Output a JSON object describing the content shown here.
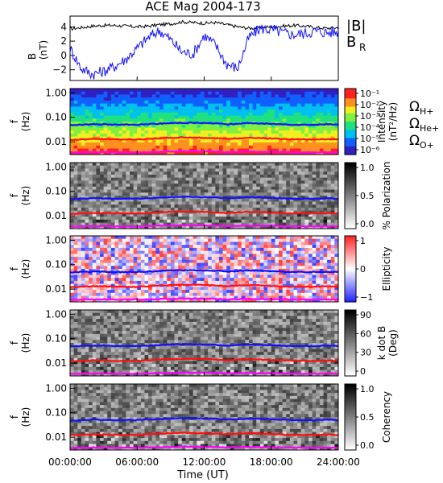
{
  "chart_data": {
    "type": "spectrogram-stack",
    "title": "ACE Mag 2004-173",
    "xlabel": "Time (UT)",
    "x_ticks": [
      "00:00:00",
      "06:00:00",
      "12:00:00",
      "18:00:00",
      "24:00:00"
    ],
    "x_range_hours": [
      0,
      24
    ],
    "freq_ticks": [
      "1.00",
      "0.10",
      "0.01"
    ],
    "freq_range_hz": [
      0.003,
      1.5
    ],
    "freq_scale": "log",
    "ylabel_freq": [
      "f",
      "(Hz)"
    ],
    "ion_lines": [
      {
        "label": "Ω",
        "sub": "H+",
        "color": "#1010ff",
        "x_hours": [
          0,
          1,
          2,
          3,
          4,
          5,
          6,
          7,
          8,
          9,
          10,
          11,
          12,
          13,
          14,
          15,
          16,
          17,
          18,
          19,
          20,
          21,
          22,
          23,
          24
        ],
        "freq_hz": [
          0.048,
          0.05,
          0.052,
          0.052,
          0.05,
          0.05,
          0.05,
          0.052,
          0.055,
          0.058,
          0.06,
          0.06,
          0.058,
          0.057,
          0.052,
          0.055,
          0.058,
          0.056,
          0.054,
          0.052,
          0.05,
          0.05,
          0.05,
          0.052,
          0.05
        ]
      },
      {
        "label": "Ω",
        "sub": "He+",
        "color": "#ff1010",
        "x_hours": [
          0,
          1,
          2,
          3,
          4,
          5,
          6,
          7,
          8,
          9,
          10,
          11,
          12,
          13,
          14,
          15,
          16,
          17,
          18,
          19,
          20,
          21,
          22,
          23,
          24
        ],
        "freq_hz": [
          0.012,
          0.0125,
          0.013,
          0.013,
          0.0125,
          0.0125,
          0.0125,
          0.013,
          0.014,
          0.0145,
          0.015,
          0.015,
          0.0145,
          0.0142,
          0.013,
          0.014,
          0.0145,
          0.014,
          0.0135,
          0.013,
          0.0125,
          0.0125,
          0.0125,
          0.013,
          0.0125
        ]
      },
      {
        "label": "Ω",
        "sub": "O+",
        "color": "#ff00ff",
        "x_hours": [
          0,
          1,
          2,
          3,
          4,
          5,
          6,
          7,
          8,
          9,
          10,
          11,
          12,
          13,
          14,
          15,
          16,
          17,
          18,
          19,
          20,
          21,
          22,
          23,
          24
        ],
        "freq_hz": [
          0.0036,
          0.0037,
          0.0038,
          0.0038,
          0.0037,
          0.0037,
          0.0037,
          0.0038,
          0.0039,
          0.004,
          0.0041,
          0.0041,
          0.004,
          0.004,
          0.0038,
          0.0039,
          0.004,
          0.0039,
          0.0039,
          0.0038,
          0.0037,
          0.0037,
          0.0037,
          0.0038,
          0.0037
        ]
      }
    ],
    "b_panel": {
      "ylabel": [
        "B",
        "(nT)"
      ],
      "y_ticks": [
        4,
        2,
        0,
        -2
      ],
      "ylim": [
        -3.5,
        5.5
      ],
      "series": [
        {
          "name": "|B|",
          "color": "#000000",
          "x_hours": [
            0,
            1,
            2,
            3,
            4,
            5,
            6,
            7,
            8,
            9,
            10,
            11,
            12,
            13,
            14,
            15,
            16,
            17,
            18,
            19,
            20,
            21,
            22,
            23,
            24
          ],
          "values": [
            3.7,
            3.9,
            4.1,
            4.2,
            4.2,
            4.1,
            4.0,
            4.1,
            4.3,
            4.4,
            4.7,
            4.6,
            4.5,
            4.6,
            4.3,
            4.0,
            3.8,
            3.9,
            4.0,
            4.1,
            4.2,
            4.1,
            3.9,
            3.8,
            3.9
          ]
        },
        {
          "name": "B",
          "sub": "R",
          "color": "#1010ff",
          "x_hours": [
            0,
            1,
            2,
            3,
            4,
            5,
            6,
            7,
            8,
            9,
            10,
            11,
            12,
            13,
            14,
            15,
            16,
            17,
            18,
            19,
            20,
            21,
            22,
            23,
            24
          ],
          "values": [
            1.0,
            -1.8,
            -2.6,
            -2.2,
            -1.5,
            -0.5,
            1.0,
            2.5,
            3.5,
            2.2,
            0.5,
            0.2,
            2.8,
            1.5,
            -1.2,
            -1.8,
            2.5,
            3.8,
            3.6,
            3.2,
            2.9,
            3.1,
            3.4,
            3.2,
            3.3
          ]
        }
      ]
    },
    "panels": [
      {
        "id": "intensity",
        "cbar_label": [
          "Intensity",
          "(nT²/Hz)"
        ],
        "cbar_ticks": [
          "10⁻¹",
          "10⁻²",
          "10⁻³",
          "10⁻⁴",
          "10⁻⁵",
          "10⁻⁶"
        ],
        "colormap": "rainbow"
      },
      {
        "id": "polarization",
        "cbar_label": [
          "% Polarization"
        ],
        "cbar_ticks": [
          "1.0",
          "0.5",
          "0.0"
        ],
        "colormap": "gray"
      },
      {
        "id": "ellipticity",
        "cbar_label": [
          "Ellipticity"
        ],
        "cbar_ticks": [
          "1",
          "0",
          "−1"
        ],
        "colormap": "bwr"
      },
      {
        "id": "kdotb",
        "cbar_label": [
          "k dot B",
          "(Deg)"
        ],
        "cbar_ticks": [
          "90",
          "60",
          "30",
          "0"
        ],
        "colormap": "gray"
      },
      {
        "id": "coherency",
        "cbar_label": [
          "Coherency"
        ],
        "cbar_ticks": [
          "1.0",
          "0.5",
          "0.0"
        ],
        "colormap": "gray"
      }
    ]
  }
}
